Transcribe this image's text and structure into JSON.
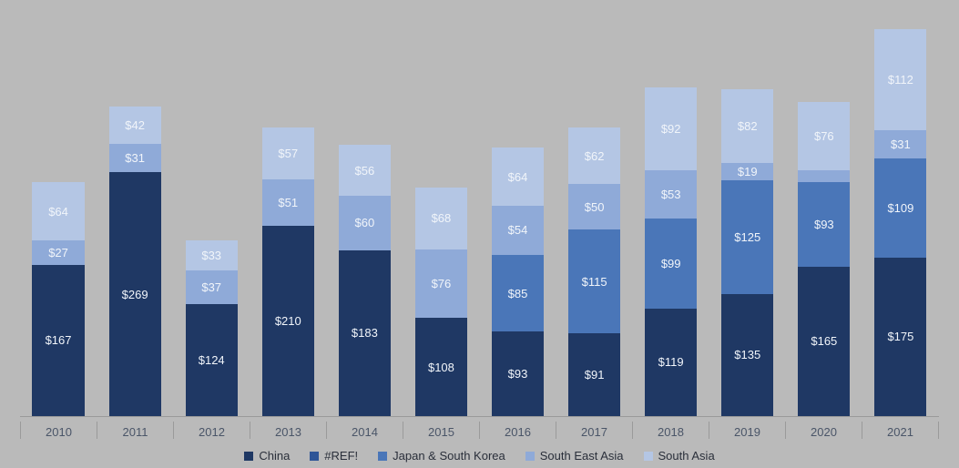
{
  "chart": {
    "type": "stacked-bar",
    "background_color": "#bababa",
    "currency_prefix": "$",
    "y_max": 450,
    "bar_width_pct": 68,
    "label_fontsize": 13,
    "axis_fontsize": 13,
    "axis_color": "#4a5568",
    "axis_line_color": "#9a9a9a",
    "series": [
      {
        "key": "china",
        "label": "China",
        "color": "#1f3864",
        "css": "dark"
      },
      {
        "key": "ref",
        "label": "#REF!",
        "color": "#2e5597",
        "css": "mid"
      },
      {
        "key": "jpkr",
        "label": "Japan & South Korea",
        "color": "#4a76b8",
        "css": "light"
      },
      {
        "key": "sea",
        "label": "South East Asia",
        "color": "#8faad8",
        "css": "lit"
      },
      {
        "key": "sa",
        "label": "South Asia",
        "color": "#b4c6e4",
        "css": "pale"
      }
    ],
    "categories": [
      "2010",
      "2011",
      "2012",
      "2013",
      "2014",
      "2015",
      "2016",
      "2017",
      "2018",
      "2019",
      "2020",
      "2021"
    ],
    "data": {
      "2010": {
        "china": 167,
        "ref": null,
        "jpkr": null,
        "sea": 27,
        "sa": 64
      },
      "2011": {
        "china": 269,
        "ref": null,
        "jpkr": null,
        "sea": 31,
        "sa": 42
      },
      "2012": {
        "china": 124,
        "ref": null,
        "jpkr": null,
        "sea": 37,
        "sa": 33
      },
      "2013": {
        "china": 210,
        "ref": null,
        "jpkr": null,
        "sea": 51,
        "sa": 57
      },
      "2014": {
        "china": 183,
        "ref": null,
        "jpkr": null,
        "sea": 60,
        "sa": 56
      },
      "2015": {
        "china": 108,
        "ref": null,
        "jpkr": null,
        "sea": 76,
        "sa": 68
      },
      "2016": {
        "china": 93,
        "ref": null,
        "jpkr": 85,
        "sea": 54,
        "sa": 64
      },
      "2017": {
        "china": 91,
        "ref": null,
        "jpkr": 115,
        "sea": 50,
        "sa": 62
      },
      "2018": {
        "china": 119,
        "ref": null,
        "jpkr": 99,
        "sea": 53,
        "sa": 92
      },
      "2019": {
        "china": 135,
        "ref": null,
        "jpkr": 125,
        "sea": 19,
        "sa": 82
      },
      "2020": {
        "china": 165,
        "ref": null,
        "jpkr": 93,
        "sea": 13,
        "sa": 76
      },
      "2021": {
        "china": 175,
        "ref": null,
        "jpkr": 109,
        "sea": 31,
        "sa": 112
      }
    }
  }
}
